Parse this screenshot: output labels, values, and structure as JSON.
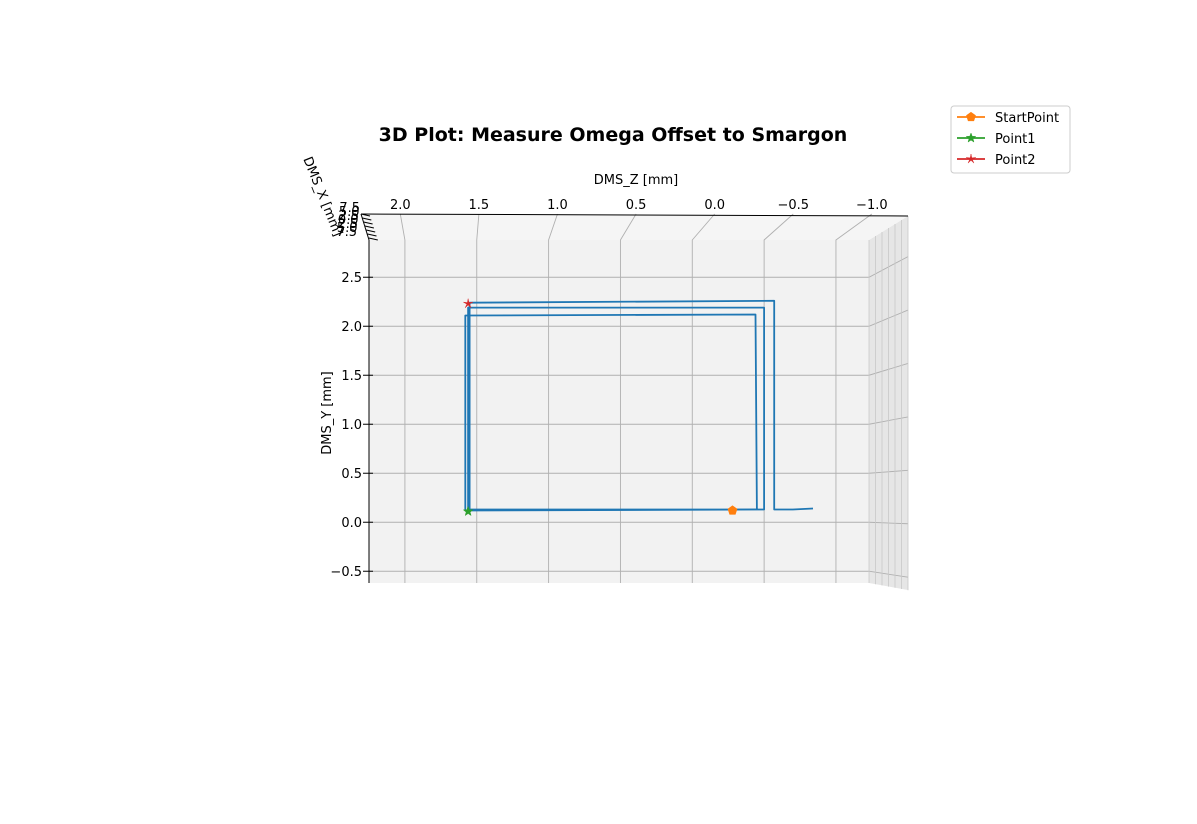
{
  "chart_data": {
    "type": "line",
    "title": "3D Plot: Measure Omega Offset to Smargon",
    "xlabel": "DMS_Z [mm]",
    "ylabel": "DMS_Y [mm]",
    "zlabel": "DMS_X [mm]",
    "xaxis_inverted": true,
    "xlim": [
      2.25,
      -1.23
    ],
    "ylim": [
      -0.62,
      2.88
    ],
    "x_ticks": [
      "2.0",
      "1.5",
      "1.0",
      "0.5",
      "0.0",
      "−0.5",
      "−1.0"
    ],
    "x_tick_values": [
      2.0,
      1.5,
      1.0,
      0.5,
      0.0,
      -0.5,
      -1.0
    ],
    "y_ticks": [
      "−0.5",
      "0.0",
      "0.5",
      "1.0",
      "1.5",
      "2.0",
      "2.5"
    ],
    "y_tick_values": [
      -0.5,
      0.0,
      0.5,
      1.0,
      1.5,
      2.0,
      2.5
    ],
    "z_ticks": [
      "7.5",
      "5.0",
      "2.5",
      "0.0",
      "2.5",
      "5.0",
      "7.5"
    ],
    "grid": true,
    "legend_position": "top-right, outside plot",
    "series": [
      {
        "color": "#1f77b4",
        "marker": "none",
        "x": [
          -0.84,
          -0.7,
          -0.57,
          -0.57,
          1.55,
          1.55,
          -0.5,
          -0.5,
          1.56,
          1.56,
          -0.45,
          -0.44,
          1.58,
          1.58
        ],
        "y": [
          0.14,
          0.13,
          0.13,
          2.26,
          2.24,
          0.12,
          0.13,
          2.19,
          2.19,
          0.13,
          0.13,
          2.12,
          2.11,
          0.12
        ]
      },
      {
        "name": "StartPoint",
        "color": "#ff7f0e",
        "marker": "pentagon",
        "x": [
          -0.28
        ],
        "y": [
          0.12
        ]
      },
      {
        "name": "Point1",
        "color": "#2ca02c",
        "marker": "star",
        "x": [
          1.56
        ],
        "y": [
          0.11
        ]
      },
      {
        "name": "Point2",
        "color": "#d62728",
        "marker": "star-thin",
        "x": [
          1.56
        ],
        "y": [
          2.23
        ]
      }
    ]
  }
}
